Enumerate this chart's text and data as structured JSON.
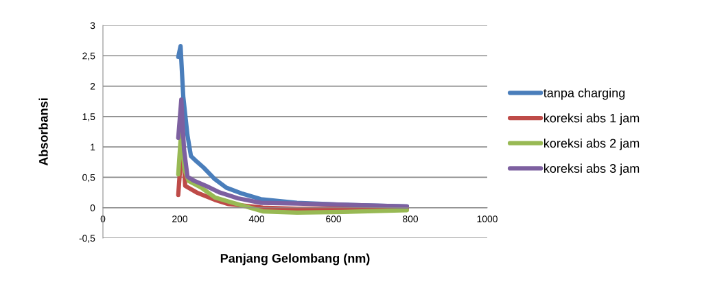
{
  "chart_data": {
    "type": "line",
    "xlabel": "Panjang Gelombang (nm)",
    "ylabel": "Absorbansi",
    "xlim": [
      0,
      1000
    ],
    "xticks": [
      0,
      200,
      400,
      600,
      800,
      1000
    ],
    "ylim": [
      -0.5,
      3
    ],
    "yticks": [
      {
        "value": -0.5,
        "label": "-0,5"
      },
      0,
      {
        "value": 0.5,
        "label": "0,5"
      },
      1,
      {
        "value": 1.5,
        "label": "1,5"
      },
      2,
      {
        "value": 2.5,
        "label": "2,5"
      },
      3
    ],
    "grid": "y",
    "legend": "right",
    "marker": "none",
    "line_style": "solid",
    "series": [
      {
        "name": "tanpa charging",
        "color": "#4a7ebb",
        "x": [
          196,
          202,
          209,
          220,
          229,
          244,
          262,
          291,
          321,
          363,
          411,
          505,
          625,
          791
        ],
        "values": [
          2.48,
          2.66,
          1.83,
          1.19,
          0.85,
          0.76,
          0.66,
          0.47,
          0.33,
          0.23,
          0.14,
          0.08,
          0.05,
          0.02
        ]
      },
      {
        "name": "koreksi abs 1 jam",
        "color": "#be4b48",
        "x": [
          196,
          207,
          214,
          244,
          291,
          327,
          416,
          505,
          791
        ],
        "values": [
          0.21,
          1.2,
          0.36,
          0.25,
          0.13,
          0.06,
          0.0,
          -0.02,
          -0.01
        ]
      },
      {
        "name": "koreksi abs 2 jam",
        "color": "#98b954",
        "x": [
          196,
          204,
          212,
          223,
          256,
          291,
          327,
          416,
          505,
          625,
          791
        ],
        "values": [
          0.55,
          1.3,
          0.63,
          0.44,
          0.33,
          0.17,
          0.1,
          -0.06,
          -0.08,
          -0.07,
          -0.04
        ]
      },
      {
        "name": "koreksi abs 3 jam",
        "color": "#7d60a0",
        "x": [
          196,
          204,
          211,
          220,
          238,
          268,
          304,
          351,
          411,
          505,
          791
        ],
        "values": [
          1.15,
          1.78,
          0.96,
          0.51,
          0.44,
          0.36,
          0.25,
          0.155,
          0.08,
          0.07,
          0.02
        ]
      }
    ]
  }
}
